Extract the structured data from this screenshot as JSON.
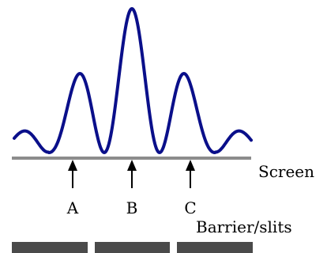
{
  "labels": {
    "screen": "Screen",
    "barrier": "Barrier/slits",
    "positions": [
      "A",
      "B",
      "C"
    ]
  },
  "colors": {
    "curve": "#0a0f8a",
    "screen_line": "#8c8c8c",
    "barrier": "#4a4a4a",
    "arrow": "#000000"
  }
}
